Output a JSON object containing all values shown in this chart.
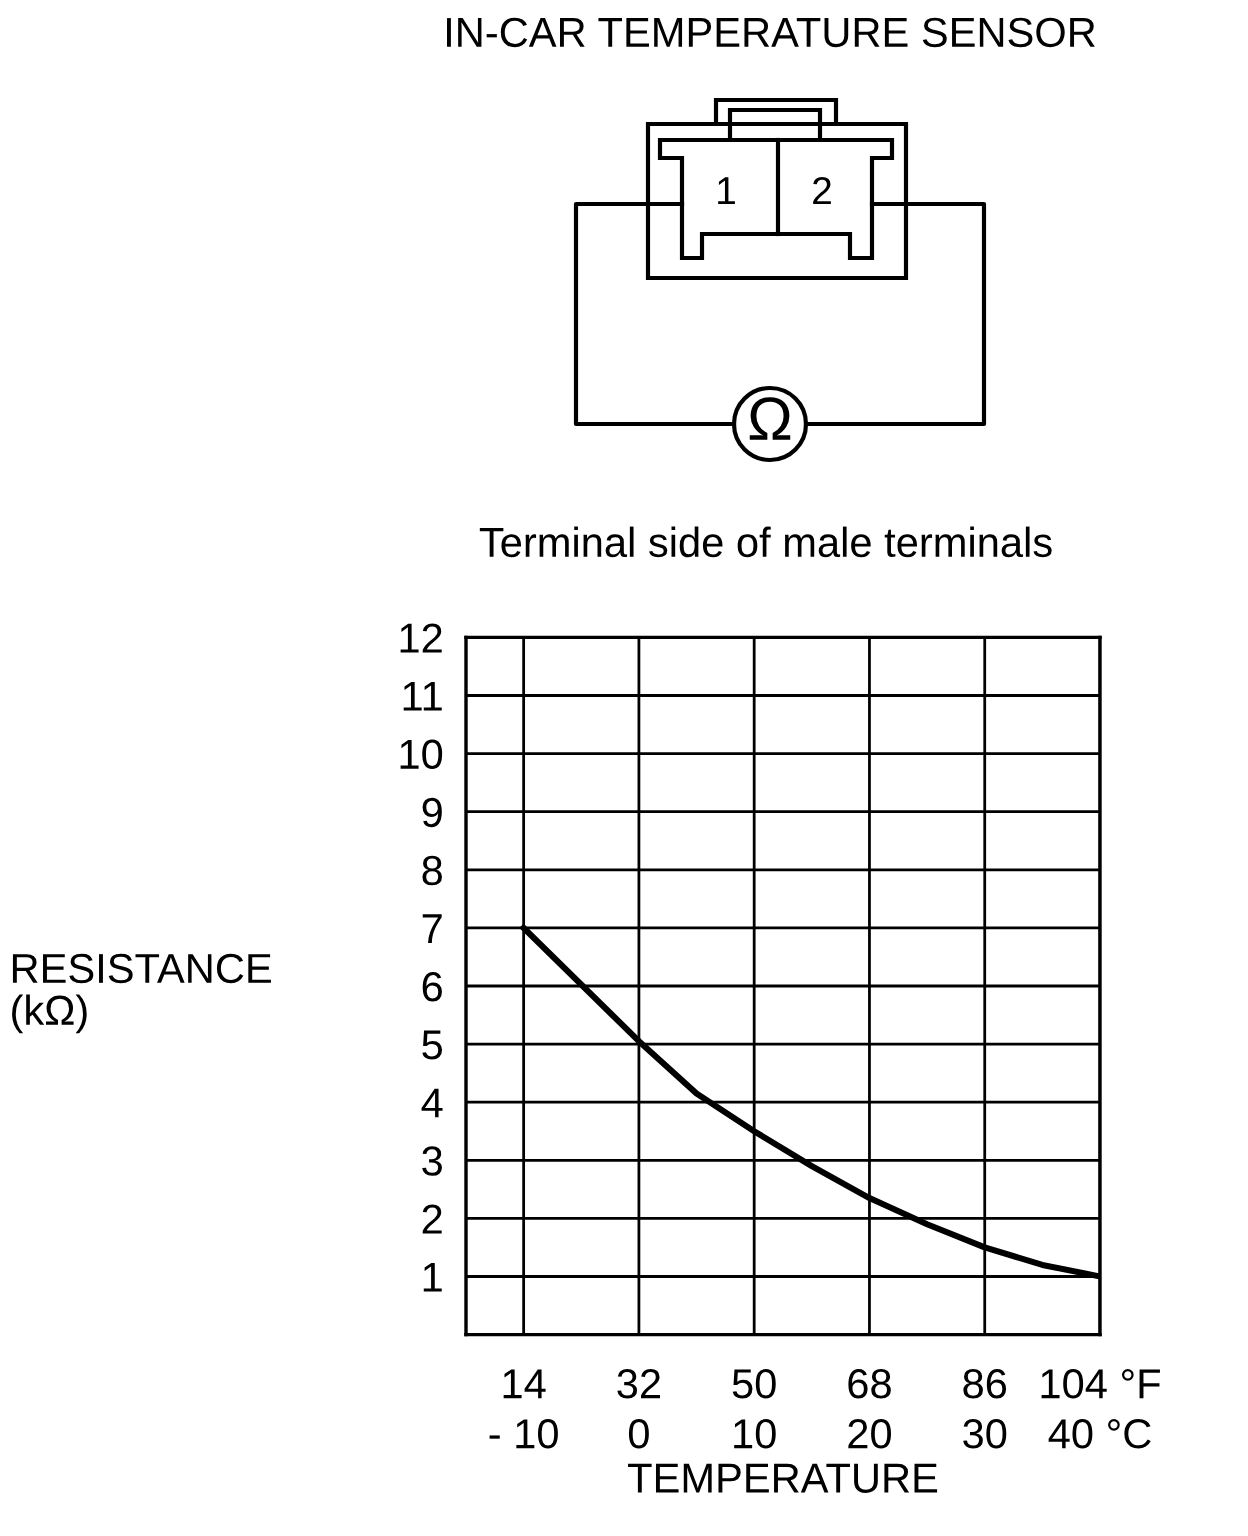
{
  "chart_data": {
    "type": "line",
    "title": "IN-CAR TEMPERATURE SENSOR",
    "subtitle": "Terminal side of male terminals",
    "xlabel": "TEMPERATURE",
    "ylabel": "RESISTANCE\n(kΩ)",
    "annotations": [
      "1",
      "2",
      "Ω"
    ],
    "x": [
      -10,
      0,
      5,
      10,
      15,
      20,
      25,
      30,
      35,
      40
    ],
    "series": [
      {
        "color": "#000000",
        "values": [
          7.0,
          5.05,
          4.15,
          3.5,
          2.9,
          2.35,
          1.9,
          1.5,
          1.2,
          1.0
        ]
      }
    ],
    "xlim": [
      -15,
      40
    ],
    "xticks": [
      {
        "value": -10,
        "label": "- 10"
      },
      0,
      10,
      20,
      30,
      {
        "value": 40,
        "label": "40 °C"
      }
    ],
    "x2lim": [
      5,
      104
    ],
    "x2ticks": [
      14,
      32,
      50,
      68,
      86,
      {
        "value": 104,
        "label": "104 °F"
      }
    ],
    "ylim": [
      0,
      12
    ],
    "yticks": [
      1,
      2,
      3,
      4,
      5,
      6,
      7,
      8,
      9,
      10,
      11,
      12
    ],
    "grid": true,
    "marker": "none",
    "line_style": "solid"
  }
}
